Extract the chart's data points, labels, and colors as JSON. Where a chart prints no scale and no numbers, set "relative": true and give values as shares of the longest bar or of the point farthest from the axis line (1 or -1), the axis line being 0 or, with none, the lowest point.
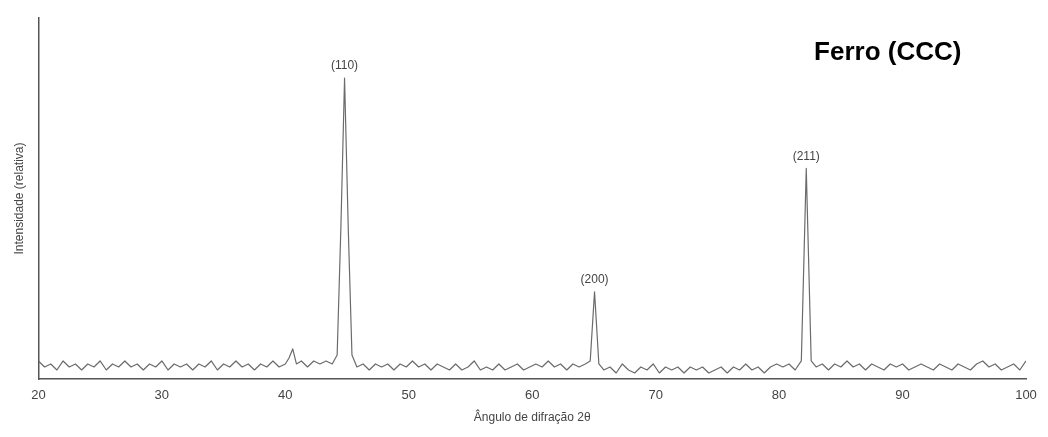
{
  "chart_data": {
    "type": "line",
    "title": "Ferro (CCC)",
    "xlabel": "Ângulo de difração 2θ",
    "ylabel": "Intensidade (relativa)",
    "relative": true,
    "xlim": [
      20,
      100
    ],
    "xticks": [
      20,
      30,
      40,
      50,
      60,
      70,
      80,
      90,
      100
    ],
    "grid": false,
    "legend": false,
    "marker": "none",
    "line_style": "solid",
    "annotations": [
      {
        "text": "(110)",
        "x": 44.8,
        "y": 1
      },
      {
        "text": "(200)",
        "x": 65.05,
        "y": 0.29
      },
      {
        "text": "(211)",
        "x": 82.2,
        "y": 0.7
      }
    ],
    "x": [
      20,
      20.5,
      21,
      21.5,
      22,
      22.5,
      23,
      23.5,
      24,
      24.5,
      25,
      25.5,
      26,
      26.5,
      27,
      27.5,
      28,
      28.5,
      29,
      29.5,
      30,
      30.5,
      31,
      31.5,
      32,
      32.5,
      33,
      33.5,
      34,
      34.5,
      35,
      35.5,
      36,
      36.5,
      37,
      37.5,
      38,
      38.5,
      39,
      39.5,
      40,
      40.3,
      40.6,
      40.9,
      41.3,
      41.8,
      42.3,
      42.8,
      43.3,
      43.8,
      44.2,
      44.5,
      44.8,
      45.1,
      45.4,
      45.8,
      46.3,
      46.8,
      47.3,
      47.8,
      48.3,
      48.8,
      49.3,
      49.8,
      50.3,
      50.8,
      51.3,
      51.8,
      52.3,
      52.8,
      53.3,
      53.8,
      54.3,
      54.8,
      55.3,
      55.8,
      56.3,
      56.8,
      57.3,
      57.8,
      58.3,
      58.8,
      59.3,
      59.8,
      60.3,
      60.8,
      61.3,
      61.8,
      62.3,
      62.8,
      63.3,
      63.8,
      64.3,
      64.7,
      65.05,
      65.4,
      65.8,
      66.3,
      66.8,
      67.3,
      67.8,
      68.3,
      68.8,
      69.3,
      69.8,
      70.3,
      70.8,
      71.3,
      71.8,
      72.3,
      72.8,
      73.3,
      73.8,
      74.3,
      74.8,
      75.3,
      75.8,
      76.3,
      76.8,
      77.3,
      77.8,
      78.3,
      78.8,
      79.3,
      79.8,
      80.3,
      80.8,
      81.3,
      81.8,
      82.2,
      82.6,
      83,
      83.5,
      84,
      84.5,
      85,
      85.5,
      86,
      86.5,
      87,
      87.5,
      88,
      88.5,
      89,
      89.5,
      90,
      90.5,
      91,
      91.5,
      92,
      92.5,
      93,
      93.5,
      94,
      94.5,
      95,
      95.5,
      96,
      96.5,
      97,
      97.5,
      98,
      98.5,
      99,
      99.5,
      100
    ],
    "values": [
      0.06,
      0.04,
      0.05,
      0.03,
      0.06,
      0.04,
      0.05,
      0.03,
      0.05,
      0.04,
      0.06,
      0.03,
      0.05,
      0.04,
      0.06,
      0.04,
      0.05,
      0.03,
      0.05,
      0.04,
      0.06,
      0.03,
      0.05,
      0.04,
      0.05,
      0.03,
      0.05,
      0.04,
      0.06,
      0.03,
      0.05,
      0.04,
      0.06,
      0.04,
      0.05,
      0.03,
      0.05,
      0.04,
      0.06,
      0.04,
      0.05,
      0.07,
      0.1,
      0.05,
      0.06,
      0.04,
      0.06,
      0.05,
      0.06,
      0.05,
      0.08,
      0.5,
      1,
      0.5,
      0.08,
      0.04,
      0.05,
      0.03,
      0.05,
      0.04,
      0.05,
      0.03,
      0.05,
      0.04,
      0.06,
      0.04,
      0.05,
      0.03,
      0.05,
      0.04,
      0.03,
      0.05,
      0.03,
      0.04,
      0.06,
      0.03,
      0.04,
      0.03,
      0.05,
      0.03,
      0.04,
      0.05,
      0.03,
      0.04,
      0.05,
      0.04,
      0.06,
      0.04,
      0.05,
      0.03,
      0.05,
      0.04,
      0.05,
      0.06,
      0.29,
      0.05,
      0.03,
      0.04,
      0.02,
      0.05,
      0.03,
      0.02,
      0.04,
      0.03,
      0.05,
      0.02,
      0.04,
      0.03,
      0.04,
      0.02,
      0.04,
      0.03,
      0.04,
      0.02,
      0.03,
      0.04,
      0.02,
      0.04,
      0.03,
      0.05,
      0.03,
      0.04,
      0.02,
      0.04,
      0.05,
      0.04,
      0.05,
      0.03,
      0.06,
      0.7,
      0.06,
      0.04,
      0.05,
      0.03,
      0.05,
      0.04,
      0.06,
      0.04,
      0.05,
      0.03,
      0.05,
      0.04,
      0.03,
      0.05,
      0.04,
      0.05,
      0.03,
      0.04,
      0.05,
      0.04,
      0.03,
      0.05,
      0.04,
      0.03,
      0.05,
      0.04,
      0.03,
      0.05,
      0.06,
      0.04,
      0.05,
      0.03,
      0.04,
      0.05,
      0.03,
      0.06
    ],
    "color": "#6b6b6b"
  }
}
